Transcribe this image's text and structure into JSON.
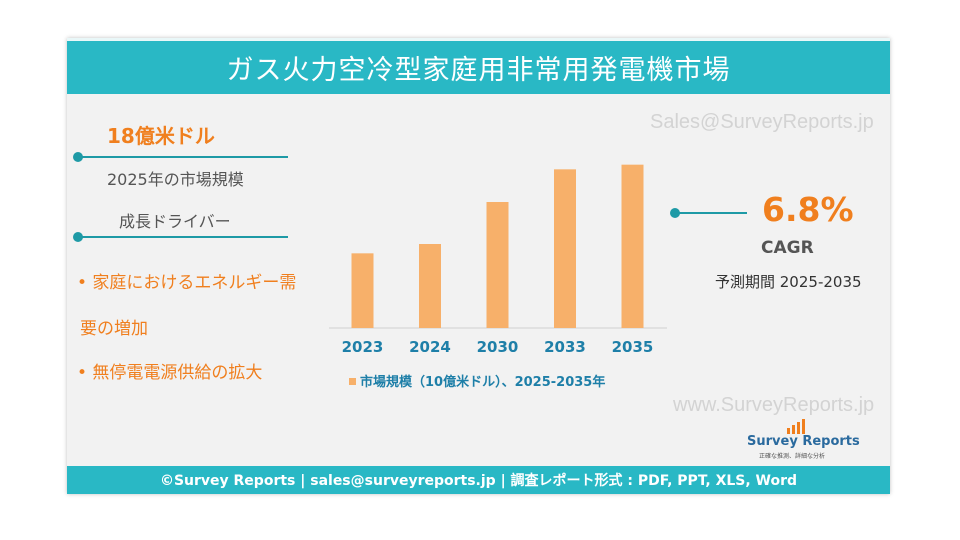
{
  "title": "ガス火力空冷型家庭用非常用発電機市場",
  "watermark_top": "Sales@SurveyReports.jp",
  "watermark_bottom": "www.SurveyReports.jp",
  "left_panel": {
    "market_size_value": "18億米ドル",
    "market_size_label": "2025年の市場規模",
    "drivers_heading": "成長ドライバー",
    "driver_1_line1": "• 家庭におけるエネルギー需",
    "driver_1_line2": "要の増加",
    "driver_2": "• 無停電電源供給の拡大"
  },
  "right_panel": {
    "cagr_value": "6.8%",
    "cagr_label": "CAGR",
    "forecast_period": "予測期間 2025-2035"
  },
  "logo": {
    "name": "Survey Reports",
    "tagline": "正確な推測、詳細な分析"
  },
  "footer": "©Survey Reports | sales@surveyreports.jp |  調査レポート形式 : PDF, PPT, XLS, Word",
  "colors": {
    "accent_teal": "#29b8c5",
    "accent_orange": "#f07f1e",
    "bar": "#f7b06a"
  },
  "chart_data": {
    "type": "bar",
    "categories": [
      "2023",
      "2024",
      "2030",
      "2033",
      "2035"
    ],
    "series": [
      {
        "name": "市場規模（10億米ドル）、2025-2035年",
        "values": [
          1.6,
          1.8,
          2.7,
          3.4,
          3.5
        ]
      }
    ],
    "ylim": [
      0,
      3.6
    ],
    "grid": false,
    "legend": "bottom"
  }
}
